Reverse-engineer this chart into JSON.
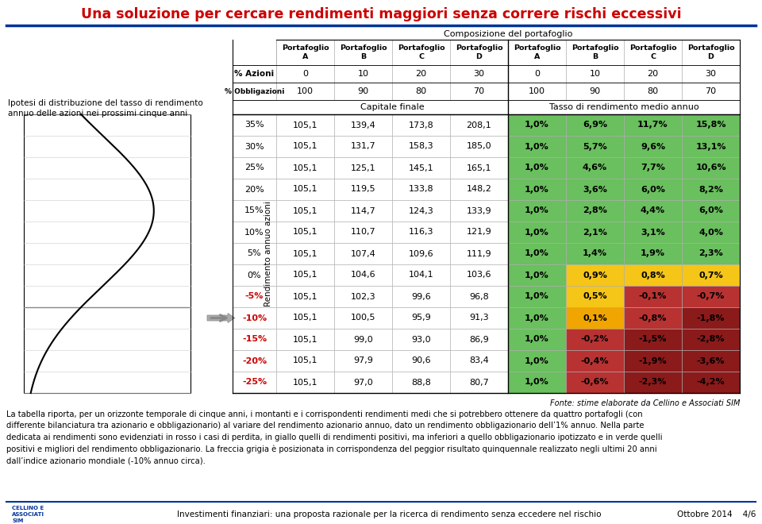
{
  "title": "Una soluzione per cercare rendimenti maggiori senza correre rischi eccessivi",
  "title_color": "#cc0000",
  "subtitle_composizione": "Composizione del portafoglio",
  "left_label_1": "Ipotesi di distribuzione del tasso di rendimento",
  "left_label_2": "annuo delle azioni nei prossimi cinque anni",
  "col_label_rendimento": "Rendimento annuo azioni",
  "rows": [
    {
      "rate": "35%",
      "rate_neg": false,
      "cap_A": "105,1",
      "cap_B": "139,4",
      "cap_C": "173,8",
      "cap_D": "208,1",
      "ret_A": "1,0%",
      "ret_B": "6,9%",
      "ret_C": "11,7%",
      "ret_D": "15,8%"
    },
    {
      "rate": "30%",
      "rate_neg": false,
      "cap_A": "105,1",
      "cap_B": "131,7",
      "cap_C": "158,3",
      "cap_D": "185,0",
      "ret_A": "1,0%",
      "ret_B": "5,7%",
      "ret_C": "9,6%",
      "ret_D": "13,1%"
    },
    {
      "rate": "25%",
      "rate_neg": false,
      "cap_A": "105,1",
      "cap_B": "125,1",
      "cap_C": "145,1",
      "cap_D": "165,1",
      "ret_A": "1,0%",
      "ret_B": "4,6%",
      "ret_C": "7,7%",
      "ret_D": "10,6%"
    },
    {
      "rate": "20%",
      "rate_neg": false,
      "cap_A": "105,1",
      "cap_B": "119,5",
      "cap_C": "133,8",
      "cap_D": "148,2",
      "ret_A": "1,0%",
      "ret_B": "3,6%",
      "ret_C": "6,0%",
      "ret_D": "8,2%"
    },
    {
      "rate": "15%",
      "rate_neg": false,
      "cap_A": "105,1",
      "cap_B": "114,7",
      "cap_C": "124,3",
      "cap_D": "133,9",
      "ret_A": "1,0%",
      "ret_B": "2,8%",
      "ret_C": "4,4%",
      "ret_D": "6,0%"
    },
    {
      "rate": "10%",
      "rate_neg": false,
      "cap_A": "105,1",
      "cap_B": "110,7",
      "cap_C": "116,3",
      "cap_D": "121,9",
      "ret_A": "1,0%",
      "ret_B": "2,1%",
      "ret_C": "3,1%",
      "ret_D": "4,0%"
    },
    {
      "rate": "5%",
      "rate_neg": false,
      "cap_A": "105,1",
      "cap_B": "107,4",
      "cap_C": "109,6",
      "cap_D": "111,9",
      "ret_A": "1,0%",
      "ret_B": "1,4%",
      "ret_C": "1,9%",
      "ret_D": "2,3%"
    },
    {
      "rate": "0%",
      "rate_neg": false,
      "cap_A": "105,1",
      "cap_B": "104,6",
      "cap_C": "104,1",
      "cap_D": "103,6",
      "ret_A": "1,0%",
      "ret_B": "0,9%",
      "ret_C": "0,8%",
      "ret_D": "0,7%"
    },
    {
      "rate": "-5%",
      "rate_neg": true,
      "cap_A": "105,1",
      "cap_B": "102,3",
      "cap_C": "99,6",
      "cap_D": "96,8",
      "ret_A": "1,0%",
      "ret_B": "0,5%",
      "ret_C": "-0,1%",
      "ret_D": "-0,7%"
    },
    {
      "rate": "-10%",
      "rate_neg": true,
      "cap_A": "105,1",
      "cap_B": "100,5",
      "cap_C": "95,9",
      "cap_D": "91,3",
      "ret_A": "1,0%",
      "ret_B": "0,1%",
      "ret_C": "-0,8%",
      "ret_D": "-1,8%"
    },
    {
      "rate": "-15%",
      "rate_neg": true,
      "cap_A": "105,1",
      "cap_B": "99,0",
      "cap_C": "93,0",
      "cap_D": "86,9",
      "ret_A": "1,0%",
      "ret_B": "-0,2%",
      "ret_C": "-1,5%",
      "ret_D": "-2,8%"
    },
    {
      "rate": "-20%",
      "rate_neg": true,
      "cap_A": "105,1",
      "cap_B": "97,9",
      "cap_C": "90,6",
      "cap_D": "83,4",
      "ret_A": "1,0%",
      "ret_B": "-0,4%",
      "ret_C": "-1,9%",
      "ret_D": "-3,6%"
    },
    {
      "rate": "-25%",
      "rate_neg": true,
      "cap_A": "105,1",
      "cap_B": "97,0",
      "cap_C": "88,8",
      "cap_D": "80,7",
      "ret_A": "1,0%",
      "ret_B": "-0,6%",
      "ret_C": "-2,3%",
      "ret_D": "-4,2%"
    }
  ],
  "arrow_row_idx": 9,
  "footer_source": "Fonte: stime elaborate da Cellino e Associati SIM",
  "footer_text": "La tabella riporta, per un orizzonte temporale di cinque anni, i montanti e i corrispondenti rendimenti medi che si potrebbero ottenere da quattro portafogli (con\ndifferente bilanciatura tra azionario e obbligazionario) al variare del rendimento azionario annuo, dato un rendimento obbligazionario dell’1% annuo. Nella parte\ndedicata ai rendimenti sono evidenziati in rosso i casi di perdita, in giallo quelli di rendimenti positivi, ma inferiori a quello obbligazionario ipotizzato e in verde quelli\npositivi e migliori del rendimento obbligazionario. La freccia grigia è posizionata in corrispondenza del peggior risultato quinquennale realizzato negli ultimi 20 anni\ndall’indice azionario mondiale (-10% annuo circa).",
  "bottom_left_text": "Investimenti finanziari: una proposta razionale per la ricerca di rendimento senza eccedere nel rischio",
  "bottom_right_text": "Ottobre 2014    4/6",
  "color_green": "#6abf5e",
  "color_yellow": "#f5c518",
  "color_orange": "#f0a500",
  "color_red_light": "#b83232",
  "color_red_dark": "#8b1a1a",
  "color_white": "#ffffff",
  "title_blue": "#003399"
}
